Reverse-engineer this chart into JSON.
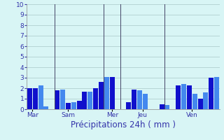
{
  "xlabel": "Précipitations 24h ( mm )",
  "ylim": [
    0,
    10
  ],
  "yticks": [
    0,
    1,
    2,
    3,
    4,
    5,
    6,
    7,
    8,
    9,
    10
  ],
  "background_color": "#d8f5f5",
  "bar_color_dark": "#1010cc",
  "bar_color_light": "#4488ee",
  "grid_color": "#aac8c8",
  "day_labels": [
    "Mar",
    "Sam",
    "Mer",
    "Jeu",
    "Ven"
  ],
  "values": [
    2.0,
    2.0,
    2.3,
    0.3,
    0.0,
    1.8,
    1.9,
    0.6,
    0.7,
    0.8,
    1.7,
    1.7,
    2.0,
    2.6,
    3.1,
    3.1,
    0.0,
    0.0,
    0.7,
    1.9,
    1.8,
    1.5,
    0.0,
    0.0,
    0.5,
    0.4,
    0.0,
    2.3,
    2.4,
    2.3,
    1.5,
    1.0,
    1.6,
    3.0,
    3.1
  ],
  "colors": [
    "dark",
    "dark",
    "light",
    "light",
    "dark",
    "dark",
    "light",
    "dark",
    "light",
    "dark",
    "dark",
    "light",
    "dark",
    "dark",
    "light",
    "dark",
    "dark",
    "dark",
    "dark",
    "dark",
    "light",
    "light",
    "dark",
    "dark",
    "dark",
    "light",
    "dark",
    "dark",
    "light",
    "dark",
    "light",
    "dark",
    "light",
    "dark",
    "light"
  ],
  "vline_positions": [
    4.5,
    13.5,
    16.5,
    24.5
  ],
  "day_tick_positions": [
    0.5,
    7,
    15,
    20.5,
    29.5
  ],
  "tick_fontsize": 6.5,
  "label_fontsize": 8.5
}
